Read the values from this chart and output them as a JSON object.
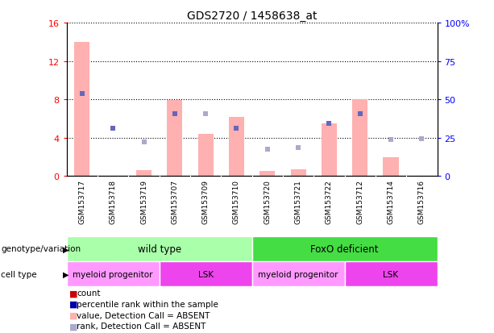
{
  "title": "GDS2720 / 1458638_at",
  "samples": [
    "GSM153717",
    "GSM153718",
    "GSM153719",
    "GSM153707",
    "GSM153709",
    "GSM153710",
    "GSM153720",
    "GSM153721",
    "GSM153722",
    "GSM153712",
    "GSM153714",
    "GSM153716"
  ],
  "bar_values": [
    14.0,
    0.0,
    0.6,
    7.9,
    4.4,
    6.2,
    0.5,
    0.7,
    5.5,
    8.0,
    2.0,
    0.0
  ],
  "rank_values": [
    53.7,
    31.2,
    22.3,
    40.6,
    40.6,
    31.2,
    17.5,
    18.7,
    34.3,
    40.6,
    23.7,
    24.3
  ],
  "bar_absent": [
    true,
    true,
    true,
    true,
    true,
    true,
    true,
    true,
    true,
    true,
    true,
    true
  ],
  "rank_absent": [
    false,
    false,
    true,
    false,
    true,
    false,
    true,
    true,
    false,
    false,
    true,
    true
  ],
  "ylim_left": [
    0,
    16
  ],
  "ylim_right": [
    0,
    100
  ],
  "yticks_left": [
    0,
    4,
    8,
    12,
    16
  ],
  "yticks_right": [
    0,
    25,
    50,
    75,
    100
  ],
  "ytick_labels_right": [
    "0",
    "25",
    "50",
    "75",
    "100%"
  ],
  "bar_color_absent": "#FFB0B0",
  "rank_color_present": "#6666BB",
  "rank_color_absent": "#AAAACC",
  "bar_width": 0.5,
  "grid_color": "black",
  "plot_bg": "#FFFFFF",
  "xtick_bg": "#CCCCCC",
  "geno_groups": [
    {
      "label": "wild type",
      "start": 0,
      "end": 6,
      "color": "#AAFFAA"
    },
    {
      "label": "FoxO deficient",
      "start": 6,
      "end": 12,
      "color": "#44DD44"
    }
  ],
  "cell_groups": [
    {
      "label": "myeloid progenitor",
      "start": 0,
      "end": 3,
      "color": "#FF99FF"
    },
    {
      "label": "LSK",
      "start": 3,
      "end": 6,
      "color": "#EE44EE"
    },
    {
      "label": "myeloid progenitor",
      "start": 6,
      "end": 9,
      "color": "#FF99FF"
    },
    {
      "label": "LSK",
      "start": 9,
      "end": 12,
      "color": "#EE44EE"
    }
  ],
  "legend_items": [
    {
      "label": "count",
      "color": "#CC0000"
    },
    {
      "label": "percentile rank within the sample",
      "color": "#0000AA"
    },
    {
      "label": "value, Detection Call = ABSENT",
      "color": "#FFB0B0"
    },
    {
      "label": "rank, Detection Call = ABSENT",
      "color": "#AAAACC"
    }
  ]
}
